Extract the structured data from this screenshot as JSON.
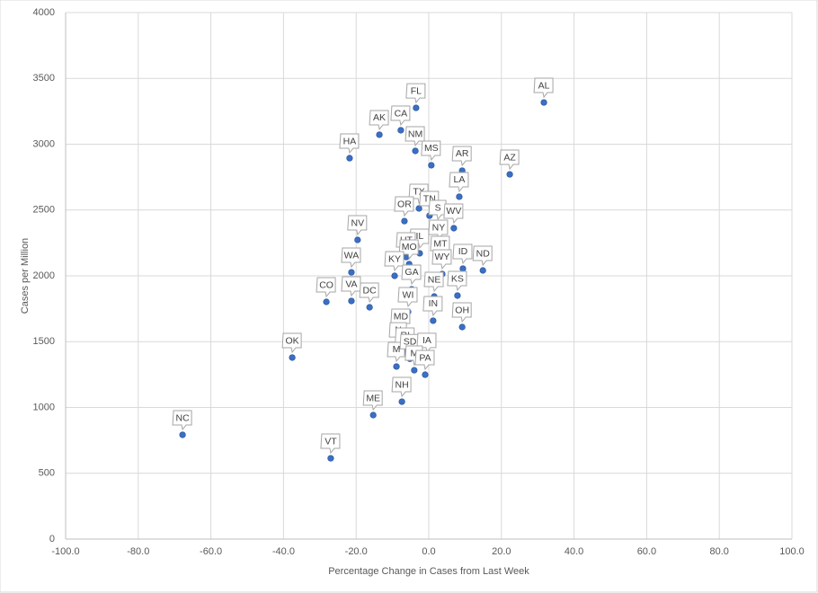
{
  "chart_data": {
    "type": "scatter",
    "x_label": "Percentage Change in Cases from Last Week",
    "y_label": "Cases per Million",
    "labels": [
      "AL",
      "FL",
      "AK",
      "CA",
      "NM",
      "HA",
      "MS",
      "AR",
      "AZ",
      "LA",
      "TX",
      "TN",
      "OR",
      "S",
      "WV",
      "NV",
      "NY",
      "IL",
      "UT",
      "MO",
      "MT",
      "KY",
      "WA",
      "ID",
      "ND",
      "WY",
      "GA",
      "NE",
      "KS",
      "CO",
      "VA",
      "DC",
      "WI",
      "IN",
      "OH",
      "MD",
      "OK",
      "N",
      "RI",
      "M",
      "SD",
      "IA",
      "M",
      "PA",
      "NH",
      "ME",
      "NC",
      "VT"
    ],
    "x": [
      31.7,
      -3.5,
      -13.6,
      -7.7,
      -3.7,
      -21.8,
      0.7,
      9.2,
      22.3,
      8.4,
      -2.7,
      0.2,
      -6.7,
      2.5,
      6.9,
      -19.6,
      2.7,
      -2.5,
      -6.2,
      -5.4,
      3.2,
      -9.4,
      -21.3,
      9.4,
      14.9,
      3.7,
      -4.7,
      1.5,
      7.9,
      -28.2,
      -21.3,
      -16.3,
      -5.7,
      1.2,
      9.2,
      -7.7,
      -37.6,
      -8.4,
      -6.5,
      -8.9,
      -5.2,
      -0.5,
      -4.0,
      -1.0,
      -7.4,
      -15.3,
      -67.8,
      -27.0
    ],
    "values": [
      3317,
      3276,
      3072,
      3106,
      2949,
      2894,
      2840,
      2799,
      2771,
      2601,
      2512,
      2457,
      2416,
      2389,
      2362,
      2273,
      2239,
      2171,
      2143,
      2089,
      2116,
      2000,
      2027,
      2055,
      2041,
      2014,
      1898,
      1843,
      1850,
      1802,
      1809,
      1761,
      1727,
      1659,
      1611,
      1563,
      1379,
      1460,
      1420,
      1311,
      1370,
      1380,
      1283,
      1249,
      1044,
      942,
      792,
      614
    ],
    "color": "#3a6fc4",
    "xlim": [
      -100,
      100
    ],
    "xticks": [
      {
        "value": -100,
        "label": "-100.0"
      },
      {
        "value": -80,
        "label": "-80.0"
      },
      {
        "value": -60,
        "label": "-60.0"
      },
      {
        "value": -40,
        "label": "-40.0"
      },
      {
        "value": -20,
        "label": "-20.0"
      },
      {
        "value": 0,
        "label": "0.0"
      },
      {
        "value": 20,
        "label": "20.0"
      },
      {
        "value": 40,
        "label": "40.0"
      },
      {
        "value": 60,
        "label": "60.0"
      },
      {
        "value": 80,
        "label": "80.0"
      },
      {
        "value": 100,
        "label": "100.0"
      }
    ],
    "ylim": [
      0,
      4000
    ],
    "yticks": [
      0,
      500,
      1000,
      1500,
      2000,
      2500,
      3000,
      3500,
      4000
    ],
    "grid": true
  }
}
